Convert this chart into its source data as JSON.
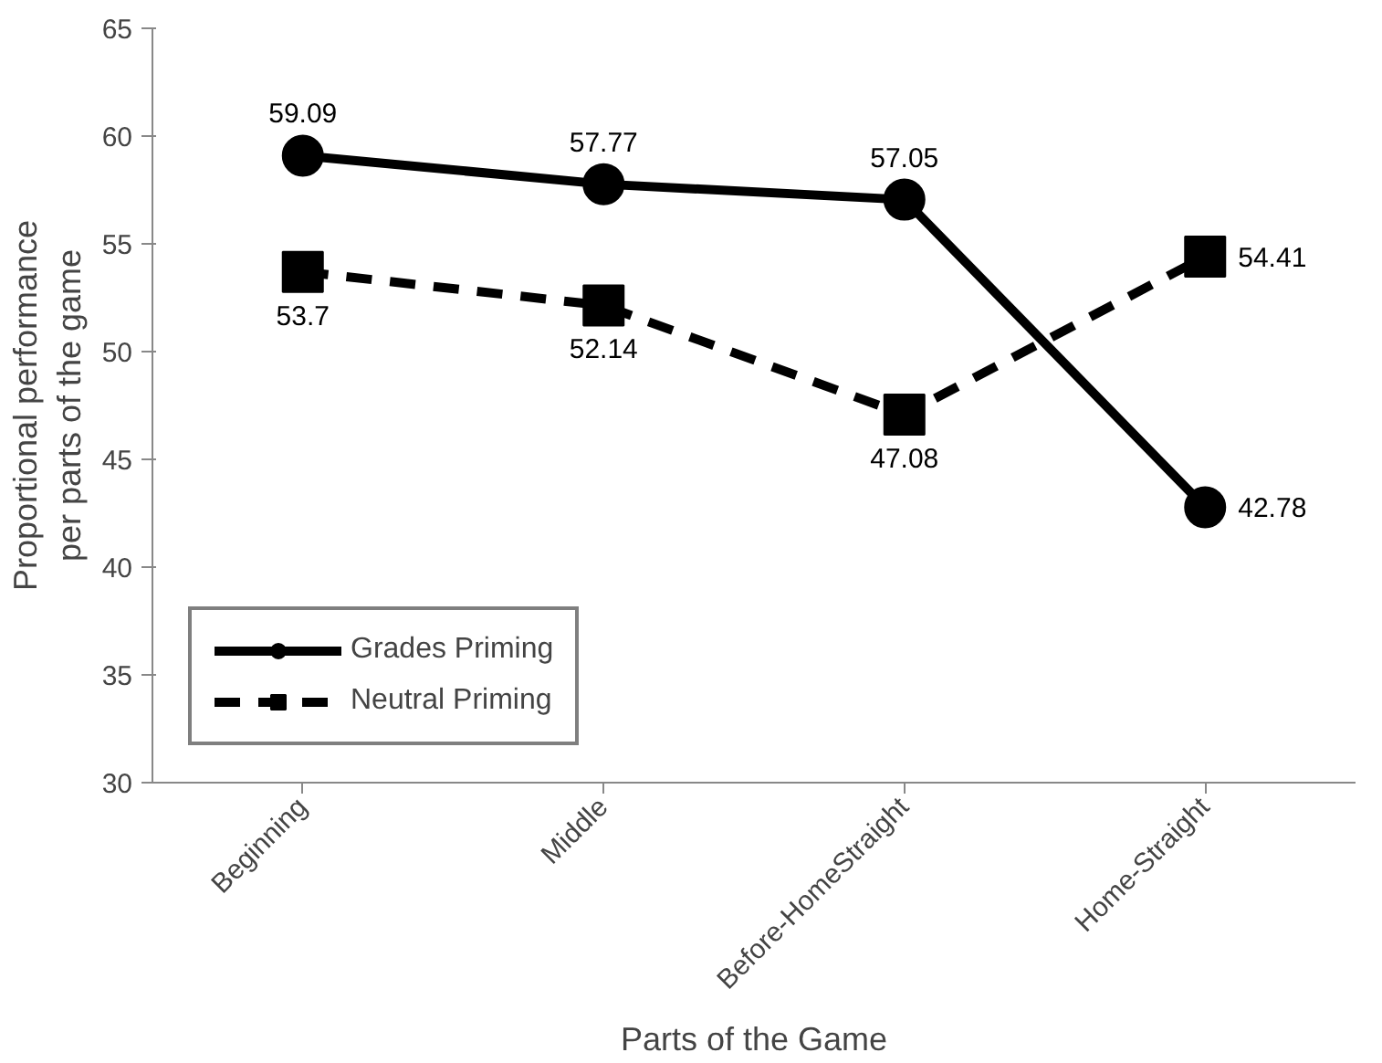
{
  "chart_data": {
    "type": "line",
    "xlabel": "Parts of the Game",
    "ylabel": "Proportional performance\nper parts of the game",
    "categories": [
      "Beginning",
      "Middle",
      "Before-HomeStraight",
      "Home-Straight"
    ],
    "series": [
      {
        "name": "Grades Priming",
        "color": "#000000",
        "values": [
          59.09,
          57.77,
          57.05,
          42.78
        ],
        "marker": "circle",
        "line_style": "solid"
      },
      {
        "name": "Neutral Priming",
        "color": "#000000",
        "values": [
          53.7,
          52.14,
          47.08,
          54.41
        ],
        "marker": "square",
        "line_style": "dashed"
      }
    ],
    "ylim": [
      30,
      65
    ],
    "yticks": [
      30,
      35,
      40,
      45,
      50,
      55,
      60,
      65
    ],
    "grid": false,
    "legend": "bottom left",
    "data_labels": true
  }
}
